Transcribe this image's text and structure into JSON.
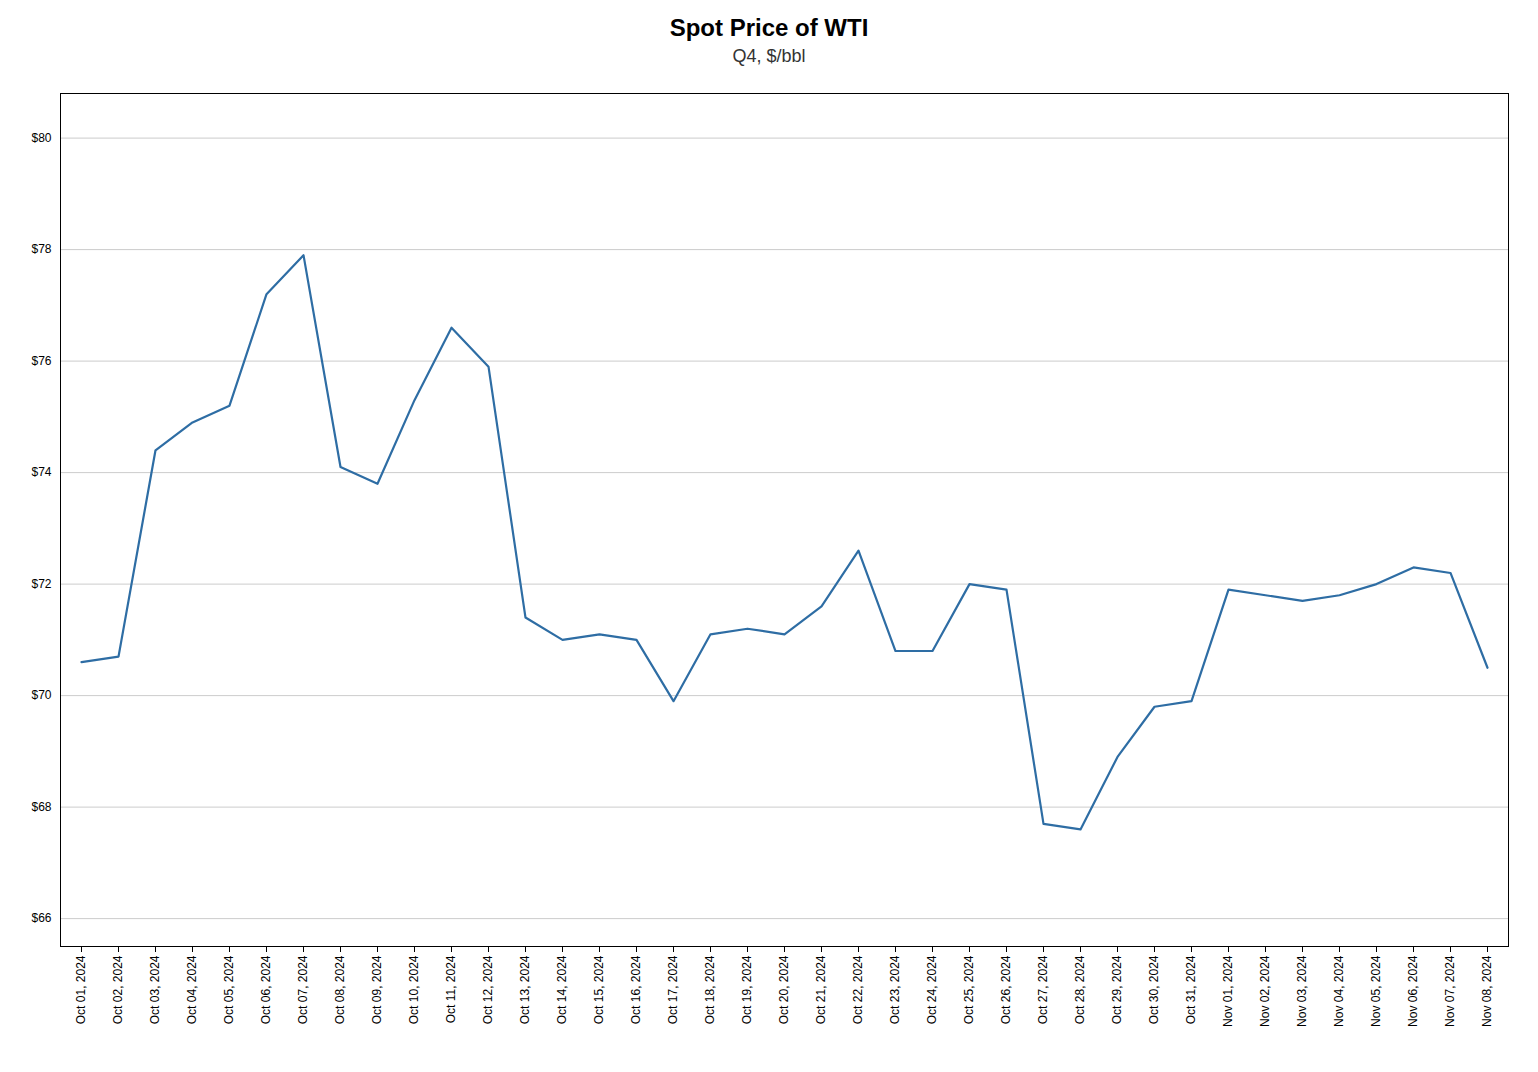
{
  "chart_data": {
    "type": "line",
    "title": "Spot Price of WTI",
    "subtitle": "Q4, $/bbl",
    "categories": [
      "Oct 01, 2024",
      "Oct 02, 2024",
      "Oct 03, 2024",
      "Oct 04, 2024",
      "Oct 05, 2024",
      "Oct 06, 2024",
      "Oct 07, 2024",
      "Oct 08, 2024",
      "Oct 09, 2024",
      "Oct 10, 2024",
      "Oct 11, 2024",
      "Oct 12, 2024",
      "Oct 13, 2024",
      "Oct 14, 2024",
      "Oct 15, 2024",
      "Oct 16, 2024",
      "Oct 17, 2024",
      "Oct 18, 2024",
      "Oct 19, 2024",
      "Oct 20, 2024",
      "Oct 21, 2024",
      "Oct 22, 2024",
      "Oct 23, 2024",
      "Oct 24, 2024",
      "Oct 25, 2024",
      "Oct 26, 2024",
      "Oct 27, 2024",
      "Oct 28, 2024",
      "Oct 29, 2024",
      "Oct 30, 2024",
      "Oct 31, 2024",
      "Nov 01, 2024",
      "Nov 02, 2024",
      "Nov 03, 2024",
      "Nov 04, 2024",
      "Nov 05, 2024",
      "Nov 06, 2024",
      "Nov 07, 2024",
      "Nov 08, 2024"
    ],
    "values": [
      70.6,
      70.7,
      74.4,
      74.9,
      75.2,
      77.2,
      77.9,
      74.1,
      73.8,
      75.3,
      76.6,
      75.9,
      71.4,
      71.0,
      71.1,
      71.0,
      69.9,
      71.1,
      71.2,
      71.1,
      71.6,
      72.6,
      70.8,
      70.8,
      72.0,
      71.9,
      67.7,
      67.6,
      68.9,
      69.8,
      69.9,
      71.9,
      71.8,
      71.7,
      71.8,
      72.0,
      72.3,
      72.2,
      70.5
    ],
    "color": "#2e6da4",
    "ylim": [
      65.5,
      80.8
    ],
    "yticks": [
      {
        "value": 66,
        "label": "$66"
      },
      {
        "value": 68,
        "label": "$68"
      },
      {
        "value": 70,
        "label": "$70"
      },
      {
        "value": 72,
        "label": "$72"
      },
      {
        "value": 74,
        "label": "$74"
      },
      {
        "value": 76,
        "label": "$76"
      },
      {
        "value": 78,
        "label": "$78"
      },
      {
        "value": 80,
        "label": "$80"
      }
    ],
    "grid": true
  }
}
